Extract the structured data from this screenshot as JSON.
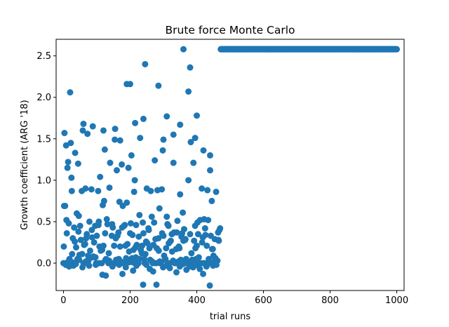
{
  "chart_data": {
    "type": "scatter",
    "title": "Brute force Monte Carlo",
    "xlabel": "trial runs",
    "ylabel": "Growth coefficient (ARG '18)",
    "xlim": [
      -22,
      1022
    ],
    "ylim": [
      -0.33,
      2.7
    ],
    "x_ticks": [
      0,
      200,
      400,
      600,
      800,
      1000
    ],
    "y_ticks": [
      0.0,
      0.5,
      1.0,
      1.5,
      2.0,
      2.5
    ],
    "x_tick_labels": [
      "0",
      "200",
      "400",
      "600",
      "800",
      "1000"
    ],
    "y_tick_labels": [
      "0.0",
      "0.5",
      "1.0",
      "1.5",
      "2.0",
      "2.5"
    ],
    "grid": false,
    "color": "#1f77b4",
    "series": [
      {
        "x": [
          0,
          3,
          5,
          8,
          10,
          14,
          18,
          20,
          22,
          25,
          28,
          30,
          35,
          38,
          40,
          44,
          48,
          50,
          55,
          58,
          60,
          62,
          66,
          70,
          72,
          76,
          80,
          84,
          88,
          90,
          95,
          100,
          104,
          108,
          110,
          115,
          118,
          120,
          124,
          128,
          132,
          135,
          138,
          140,
          145,
          150,
          152,
          156,
          160,
          165,
          168,
          170,
          175,
          180,
          184,
          188,
          190,
          195,
          200,
          204,
          208,
          210,
          214,
          218,
          220,
          225,
          228,
          230,
          235,
          240,
          244,
          248,
          250,
          255,
          258,
          260,
          265,
          270,
          274,
          278,
          280,
          285,
          288,
          290,
          295,
          300,
          304,
          308,
          310,
          315,
          318,
          320,
          325,
          330,
          334,
          338,
          340,
          345,
          350,
          354,
          358,
          360,
          365,
          368,
          370,
          375,
          380,
          384,
          388,
          390,
          395,
          400,
          404,
          408,
          410,
          415,
          418,
          420,
          425,
          430,
          434,
          438,
          440,
          445,
          450,
          454,
          458,
          460,
          465,
          468,
          470,
          2,
          6,
          12,
          16,
          24,
          32,
          42,
          46,
          52,
          64,
          68,
          74,
          78,
          86,
          92,
          98,
          106,
          112,
          122,
          126,
          130,
          142,
          148,
          154,
          158,
          162,
          172,
          178,
          182,
          192,
          198,
          202,
          206,
          212,
          216,
          222,
          232,
          238,
          242,
          252,
          262,
          268,
          272,
          282,
          292,
          298,
          302,
          312,
          322,
          328,
          332,
          342,
          348,
          352,
          362,
          372,
          378,
          382,
          392,
          398,
          402,
          412,
          422,
          428,
          432,
          442,
          448,
          452,
          462,
          466,
          1,
          9,
          15,
          26,
          34,
          45,
          56,
          65,
          75,
          85,
          96,
          105,
          116,
          125,
          136,
          146,
          157,
          166,
          176,
          186,
          197,
          207,
          217,
          226,
          236,
          246,
          256,
          266,
          276,
          286,
          296,
          306,
          316,
          326,
          336,
          346,
          356,
          366,
          376,
          386,
          396,
          406,
          416,
          426,
          436,
          446,
          456,
          464,
          20,
          245,
          380,
          190,
          200,
          285,
          360,
          400,
          375,
          240,
          310,
          170,
          120,
          60,
          155,
          215,
          300,
          330,
          350,
          395,
          420,
          440,
          7,
          17,
          27,
          37,
          47,
          57,
          67,
          77,
          87,
          97,
          107,
          117,
          127,
          137,
          147,
          167,
          177,
          187,
          196,
          209,
          219,
          229,
          239,
          249,
          259,
          269,
          279,
          289,
          299,
          309,
          319,
          329,
          339,
          349,
          359,
          369,
          379,
          389,
          399,
          409,
          419,
          429,
          439,
          449,
          459
        ],
        "y": [
          0.0,
          1.57,
          0.69,
          1.42,
          0.36,
          1.22,
          0.05,
          0.02,
          1.45,
          0.87,
          0.3,
          -0.03,
          1.33,
          0.19,
          0.6,
          1.2,
          0.1,
          0.45,
          0.87,
          1.6,
          0.0,
          0.22,
          0.9,
          0.35,
          1.56,
          0.05,
          0.15,
          0.89,
          1.65,
          0.08,
          0.45,
          0.33,
          0.87,
          0.2,
          1.04,
          0.0,
          0.7,
          0.21,
          1.37,
          0.05,
          0.47,
          0.0,
          0.91,
          1.21,
          0.33,
          0.0,
          0.21,
          0.0,
          1.12,
          0.37,
          0.74,
          0.2,
          1.19,
          0.0,
          0.46,
          0.06,
          0.73,
          1.15,
          0.36,
          1.3,
          0.01,
          0.16,
          1.0,
          0.46,
          0.22,
          0.0,
          0.58,
          1.51,
          0.12,
          0.36,
          0.0,
          0.26,
          0.9,
          0.42,
          0.18,
          0.04,
          0.56,
          0.22,
          1.24,
          0.0,
          0.18,
          0.3,
          0.66,
          0.0,
          0.89,
          0.33,
          0.04,
          0.18,
          0.56,
          0.45,
          0.0,
          0.26,
          0.35,
          1.21,
          0.0,
          0.17,
          0.37,
          0.02,
          0.83,
          0.32,
          0.61,
          0.27,
          0.28,
          0.05,
          0.0,
          1.0,
          0.35,
          0.12,
          0.0,
          1.21,
          0.45,
          0.21,
          0.35,
          0.0,
          0.52,
          0.9,
          0.31,
          0.0,
          0.42,
          0.21,
          0.52,
          0.0,
          1.12,
          0.75,
          0.09,
          0.29,
          0.86,
          0.03,
          0.28,
          0.4,
          0.42,
          0.69,
          0.0,
          1.15,
          0.48,
          1.03,
          0.43,
          0.05,
          0.57,
          0.28,
          0.0,
          0.3,
          0.09,
          0.5,
          0.31,
          0.25,
          0.0,
          0.5,
          0.15,
          0.75,
          0.04,
          0.53,
          0.0,
          0.43,
          1.49,
          0.04,
          0.33,
          0.02,
          0.69,
          0.45,
          0.23,
          0.04,
          0.48,
          0.06,
          0.86,
          0.19,
          0.05,
          0.16,
          0.49,
          0.05,
          0.24,
          0.87,
          0.0,
          0.49,
          0.88,
          0.0,
          1.36,
          0.09,
          0.47,
          0.27,
          0.01,
          0.37,
          0.51,
          0.18,
          0.04,
          0.41,
          0.01,
          0.0,
          1.46,
          0.27,
          0.05,
          0.49,
          0.0,
          0.53,
          0.0,
          0.88,
          0.33,
          0.17,
          0.02,
          0.03,
          0.27,
          0.2,
          0.52,
          0.02,
          0.11,
          0.26,
          0.38,
          0.11,
          0.23,
          0.03,
          0.4,
          0.07,
          0.46,
          0.16,
          0.36,
          0.12,
          0.47,
          0.3,
          0.05,
          0.43,
          0.21,
          0.14,
          0.34,
          0.07,
          0.32,
          0.21,
          0.11,
          0.4,
          0.02,
          0.29,
          0.15,
          0.36,
          0.05,
          0.24,
          0.14,
          0.0,
          0.2,
          0.36,
          0.29,
          0.0,
          0.04,
          0.18,
          0.07,
          0.25,
          0.34,
          0.05,
          0.17,
          0.06,
          0.37,
          2.06,
          2.4,
          2.36,
          2.16,
          2.16,
          2.14,
          2.58,
          1.78,
          2.07,
          1.74,
          1.77,
          1.48,
          1.6,
          1.68,
          1.62,
          1.69,
          1.49,
          1.55,
          1.67,
          1.51,
          1.36,
          1.3,
          -0.02,
          -0.04,
          0.01,
          -0.01,
          0.04,
          -0.05,
          0.02,
          -0.03,
          0.07,
          -0.02,
          0.0,
          -0.14,
          -0.15,
          0.03,
          -0.04,
          -0.02,
          -0.13,
          -0.05,
          0.01,
          -0.09,
          -0.03,
          0.05,
          -0.26,
          -0.02,
          -0.07,
          -0.1,
          -0.26,
          0.02,
          -0.05,
          -0.03,
          -0.06,
          0.03,
          -0.11,
          -0.04,
          -0.01,
          -0.08,
          -0.04,
          -0.05,
          -0.02,
          -0.07,
          -0.13,
          -0.04,
          -0.27,
          -0.03,
          -0.02
        ]
      },
      {
        "x_range": [
          472,
          1000
        ],
        "y": 2.58
      }
    ]
  }
}
